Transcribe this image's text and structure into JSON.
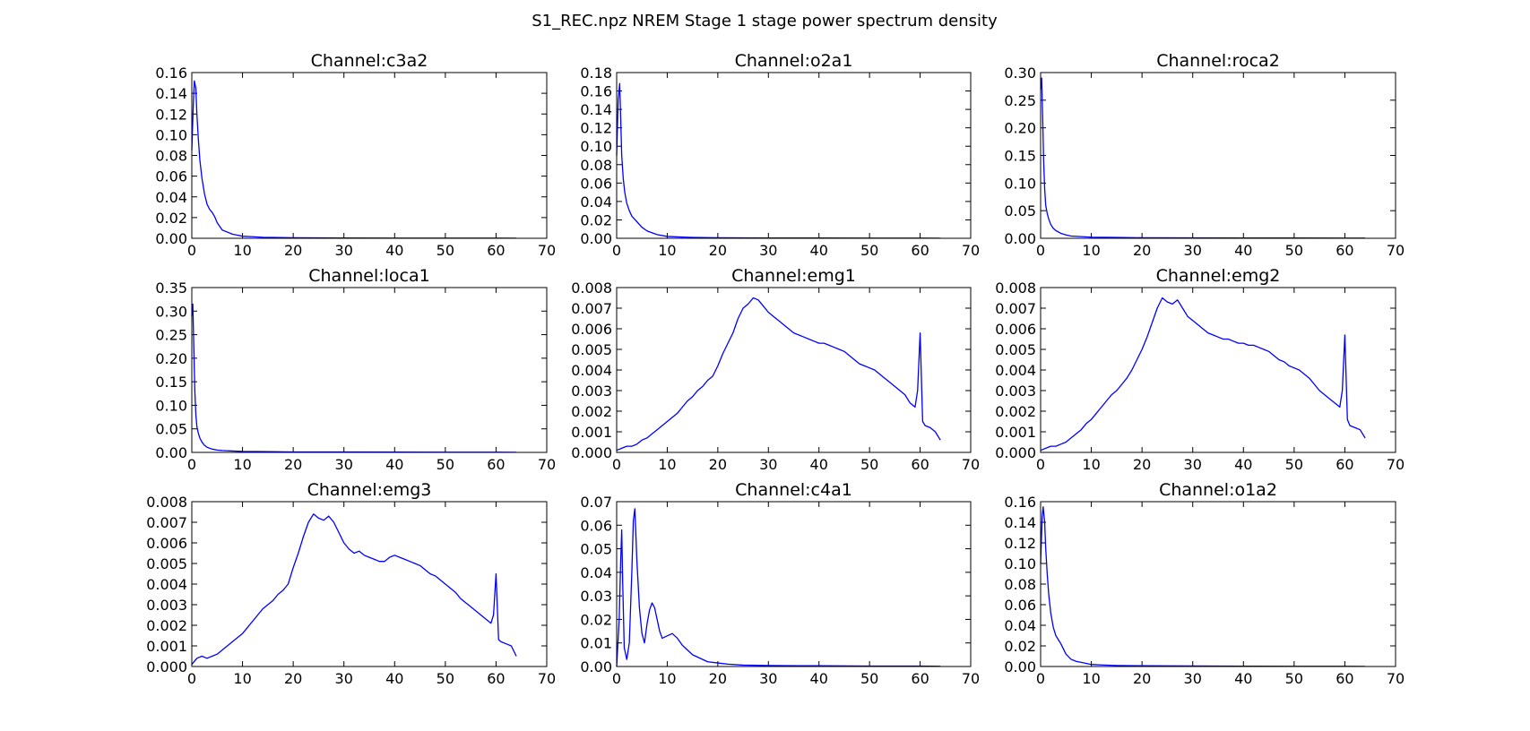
{
  "figure": {
    "title": "S1_REC.npz NREM Stage 1 stage power spectrum density",
    "line_color": "#0000ff"
  },
  "chart_data": [
    {
      "type": "line",
      "title": "Channel:c3a2",
      "xlim": [
        0,
        70
      ],
      "ylim": [
        0,
        0.16
      ],
      "xticks": [
        "0",
        "10",
        "20",
        "30",
        "40",
        "50",
        "60",
        "70"
      ],
      "yticks": [
        "0.00",
        "0.02",
        "0.04",
        "0.06",
        "0.08",
        "0.10",
        "0.12",
        "0.14",
        "0.16"
      ],
      "series": [
        {
          "x": [
            0,
            0.3,
            0.5,
            0.8,
            1,
            1.3,
            1.6,
            2,
            2.5,
            3,
            3.5,
            4,
            4.5,
            5,
            6,
            7,
            8,
            9,
            10,
            12,
            14,
            16,
            20,
            25,
            30,
            40,
            50,
            60,
            64
          ],
          "y": [
            0.085,
            0.13,
            0.152,
            0.145,
            0.12,
            0.095,
            0.075,
            0.058,
            0.043,
            0.033,
            0.028,
            0.025,
            0.021,
            0.015,
            0.008,
            0.006,
            0.004,
            0.003,
            0.002,
            0.0015,
            0.001,
            0.0008,
            0.0005,
            0.0004,
            0.0003,
            0.0002,
            0.0002,
            0.0002,
            0.0001
          ]
        }
      ]
    },
    {
      "type": "line",
      "title": "Channel:o2a1",
      "xlim": [
        0,
        70
      ],
      "ylim": [
        0,
        0.18
      ],
      "xticks": [
        "0",
        "10",
        "20",
        "30",
        "40",
        "50",
        "60",
        "70"
      ],
      "yticks": [
        "0.00",
        "0.02",
        "0.04",
        "0.06",
        "0.08",
        "0.10",
        "0.12",
        "0.14",
        "0.16",
        "0.18"
      ],
      "series": [
        {
          "x": [
            0,
            0.3,
            0.6,
            0.8,
            1,
            1.3,
            1.6,
            2,
            2.5,
            3,
            3.5,
            4,
            5,
            6,
            7,
            8,
            10,
            12,
            15,
            20,
            25,
            30,
            40,
            50,
            60,
            64
          ],
          "y": [
            0.09,
            0.15,
            0.168,
            0.13,
            0.09,
            0.065,
            0.05,
            0.038,
            0.03,
            0.024,
            0.021,
            0.018,
            0.012,
            0.008,
            0.006,
            0.004,
            0.002,
            0.0015,
            0.001,
            0.0006,
            0.0005,
            0.0004,
            0.0003,
            0.0002,
            0.0002,
            0.0001
          ]
        }
      ]
    },
    {
      "type": "line",
      "title": "Channel:roca2",
      "xlim": [
        0,
        70
      ],
      "ylim": [
        0,
        0.3
      ],
      "xticks": [
        "0",
        "10",
        "20",
        "30",
        "40",
        "50",
        "60",
        "70"
      ],
      "yticks": [
        "0.00",
        "0.05",
        "0.10",
        "0.15",
        "0.20",
        "0.25",
        "0.30"
      ],
      "series": [
        {
          "x": [
            0,
            0.2,
            0.4,
            0.6,
            0.8,
            1,
            1.3,
            1.6,
            2,
            2.5,
            3,
            4,
            5,
            6,
            8,
            10,
            15,
            20,
            30,
            40,
            50,
            60,
            64
          ],
          "y": [
            0.27,
            0.29,
            0.22,
            0.14,
            0.09,
            0.06,
            0.045,
            0.035,
            0.025,
            0.018,
            0.014,
            0.009,
            0.006,
            0.004,
            0.003,
            0.002,
            0.0015,
            0.001,
            0.0008,
            0.0006,
            0.0005,
            0.0004,
            0.0003
          ]
        }
      ]
    },
    {
      "type": "line",
      "title": "Channel:loca1",
      "xlim": [
        0,
        70
      ],
      "ylim": [
        0,
        0.35
      ],
      "xticks": [
        "0",
        "10",
        "20",
        "30",
        "40",
        "50",
        "60",
        "70"
      ],
      "yticks": [
        "0.00",
        "0.05",
        "0.10",
        "0.15",
        "0.20",
        "0.25",
        "0.30",
        "0.35"
      ],
      "series": [
        {
          "x": [
            0,
            0.2,
            0.4,
            0.6,
            0.8,
            1,
            1.3,
            1.6,
            2,
            2.5,
            3,
            4,
            5,
            6,
            8,
            10,
            15,
            20,
            30,
            40,
            50,
            60,
            64
          ],
          "y": [
            0.29,
            0.315,
            0.22,
            0.13,
            0.08,
            0.055,
            0.04,
            0.03,
            0.022,
            0.015,
            0.011,
            0.007,
            0.005,
            0.004,
            0.003,
            0.002,
            0.0015,
            0.001,
            0.0008,
            0.0006,
            0.0005,
            0.0004,
            0.0003
          ]
        }
      ]
    },
    {
      "type": "line",
      "title": "Channel:emg1",
      "xlim": [
        0,
        70
      ],
      "ylim": [
        0,
        0.008
      ],
      "xticks": [
        "0",
        "10",
        "20",
        "30",
        "40",
        "50",
        "60",
        "70"
      ],
      "yticks": [
        "0.000",
        "0.001",
        "0.002",
        "0.003",
        "0.004",
        "0.005",
        "0.006",
        "0.007",
        "0.008"
      ],
      "series": [
        {
          "x": [
            0,
            1,
            2,
            3,
            4,
            5,
            6,
            7,
            8,
            9,
            10,
            11,
            12,
            13,
            14,
            15,
            16,
            17,
            18,
            19,
            20,
            21,
            22,
            23,
            24,
            25,
            26,
            27,
            28,
            29,
            30,
            31,
            32,
            33,
            34,
            35,
            36,
            37,
            38,
            39,
            40,
            41,
            42,
            43,
            44,
            45,
            46,
            47,
            48,
            49,
            50,
            51,
            52,
            53,
            54,
            55,
            56,
            57,
            58,
            59,
            59.5,
            60,
            60.5,
            61,
            62,
            63,
            64
          ],
          "y": [
            0.0001,
            0.0002,
            0.0003,
            0.0003,
            0.0004,
            0.0006,
            0.0007,
            0.0009,
            0.0011,
            0.0013,
            0.0015,
            0.0017,
            0.0019,
            0.0022,
            0.0025,
            0.0027,
            0.003,
            0.0032,
            0.0035,
            0.0037,
            0.0042,
            0.0048,
            0.0053,
            0.0058,
            0.0065,
            0.007,
            0.0072,
            0.0075,
            0.0074,
            0.0071,
            0.0068,
            0.0066,
            0.0064,
            0.0062,
            0.006,
            0.0058,
            0.0057,
            0.0056,
            0.0055,
            0.0054,
            0.0053,
            0.0053,
            0.0052,
            0.0051,
            0.005,
            0.0049,
            0.0047,
            0.0045,
            0.0043,
            0.0042,
            0.0041,
            0.004,
            0.0038,
            0.0036,
            0.0034,
            0.0032,
            0.003,
            0.0028,
            0.0024,
            0.0022,
            0.003,
            0.0058,
            0.0015,
            0.0013,
            0.0012,
            0.001,
            0.0006
          ]
        }
      ]
    },
    {
      "type": "line",
      "title": "Channel:emg2",
      "xlim": [
        0,
        70
      ],
      "ylim": [
        0,
        0.008
      ],
      "xticks": [
        "0",
        "10",
        "20",
        "30",
        "40",
        "50",
        "60",
        "70"
      ],
      "yticks": [
        "0.000",
        "0.001",
        "0.002",
        "0.003",
        "0.004",
        "0.005",
        "0.006",
        "0.007",
        "0.008"
      ],
      "series": [
        {
          "x": [
            0,
            1,
            2,
            3,
            4,
            5,
            6,
            7,
            8,
            9,
            10,
            11,
            12,
            13,
            14,
            15,
            16,
            17,
            18,
            19,
            20,
            21,
            22,
            23,
            24,
            25,
            26,
            27,
            28,
            29,
            30,
            31,
            32,
            33,
            34,
            35,
            36,
            37,
            38,
            39,
            40,
            41,
            42,
            43,
            44,
            45,
            46,
            47,
            48,
            49,
            50,
            51,
            52,
            53,
            54,
            55,
            56,
            57,
            58,
            59,
            59.5,
            60,
            60.5,
            61,
            62,
            63,
            64
          ],
          "y": [
            0.0001,
            0.0002,
            0.0003,
            0.0003,
            0.0004,
            0.0005,
            0.0007,
            0.0009,
            0.0011,
            0.0014,
            0.0016,
            0.0019,
            0.0022,
            0.0025,
            0.0028,
            0.003,
            0.0033,
            0.0036,
            0.004,
            0.0045,
            0.005,
            0.0056,
            0.0063,
            0.007,
            0.0075,
            0.0073,
            0.0072,
            0.0074,
            0.007,
            0.0066,
            0.0064,
            0.0062,
            0.006,
            0.0058,
            0.0057,
            0.0056,
            0.0055,
            0.0055,
            0.0054,
            0.0053,
            0.0053,
            0.0052,
            0.0052,
            0.0051,
            0.005,
            0.0049,
            0.0047,
            0.0045,
            0.0044,
            0.0042,
            0.0041,
            0.004,
            0.0038,
            0.0036,
            0.0033,
            0.003,
            0.0028,
            0.0026,
            0.0024,
            0.0022,
            0.003,
            0.0057,
            0.0016,
            0.0013,
            0.0012,
            0.0011,
            0.0007
          ]
        }
      ]
    },
    {
      "type": "line",
      "title": "Channel:emg3",
      "xlim": [
        0,
        70
      ],
      "ylim": [
        0,
        0.008
      ],
      "xticks": [
        "0",
        "10",
        "20",
        "30",
        "40",
        "50",
        "60",
        "70"
      ],
      "yticks": [
        "0.000",
        "0.001",
        "0.002",
        "0.003",
        "0.004",
        "0.005",
        "0.006",
        "0.007",
        "0.008"
      ],
      "series": [
        {
          "x": [
            0,
            1,
            2,
            3,
            4,
            5,
            6,
            7,
            8,
            9,
            10,
            11,
            12,
            13,
            14,
            15,
            16,
            17,
            18,
            19,
            20,
            21,
            22,
            23,
            24,
            25,
            26,
            27,
            28,
            29,
            30,
            31,
            32,
            33,
            34,
            35,
            36,
            37,
            38,
            39,
            40,
            41,
            42,
            43,
            44,
            45,
            46,
            47,
            48,
            49,
            50,
            51,
            52,
            53,
            54,
            55,
            56,
            57,
            58,
            59,
            59.5,
            60,
            60.5,
            61,
            62,
            63,
            64
          ],
          "y": [
            0.0001,
            0.0004,
            0.0005,
            0.0004,
            0.0005,
            0.0006,
            0.0008,
            0.001,
            0.0012,
            0.0014,
            0.0016,
            0.0019,
            0.0022,
            0.0025,
            0.0028,
            0.003,
            0.0032,
            0.0035,
            0.0037,
            0.004,
            0.0048,
            0.0055,
            0.0063,
            0.007,
            0.0074,
            0.0072,
            0.0071,
            0.0073,
            0.007,
            0.0065,
            0.006,
            0.0057,
            0.0055,
            0.0056,
            0.0054,
            0.0053,
            0.0052,
            0.0051,
            0.0051,
            0.0053,
            0.0054,
            0.0053,
            0.0052,
            0.0051,
            0.005,
            0.0049,
            0.0047,
            0.0045,
            0.0044,
            0.0042,
            0.004,
            0.0038,
            0.0036,
            0.0033,
            0.0031,
            0.0029,
            0.0027,
            0.0025,
            0.0023,
            0.0021,
            0.0025,
            0.0045,
            0.0013,
            0.0012,
            0.0011,
            0.001,
            0.0005
          ]
        }
      ]
    },
    {
      "type": "line",
      "title": "Channel:c4a1",
      "xlim": [
        0,
        70
      ],
      "ylim": [
        0,
        0.07
      ],
      "xticks": [
        "0",
        "10",
        "20",
        "30",
        "40",
        "50",
        "60",
        "70"
      ],
      "yticks": [
        "0.00",
        "0.01",
        "0.02",
        "0.03",
        "0.04",
        "0.05",
        "0.06",
        "0.07"
      ],
      "series": [
        {
          "x": [
            0,
            0.5,
            0.8,
            1,
            1.2,
            1.5,
            2,
            2.5,
            3,
            3.3,
            3.6,
            4,
            4.5,
            5,
            5.5,
            6,
            6.5,
            7,
            7.5,
            8,
            8.5,
            9,
            10,
            11,
            12,
            13,
            14,
            15,
            16,
            17,
            18,
            20,
            22,
            25,
            30,
            40,
            50,
            60,
            64
          ],
          "y": [
            0.0,
            0.02,
            0.045,
            0.058,
            0.035,
            0.008,
            0.003,
            0.01,
            0.04,
            0.062,
            0.067,
            0.045,
            0.025,
            0.014,
            0.01,
            0.018,
            0.024,
            0.027,
            0.025,
            0.02,
            0.015,
            0.012,
            0.013,
            0.014,
            0.012,
            0.009,
            0.007,
            0.005,
            0.004,
            0.003,
            0.002,
            0.0015,
            0.001,
            0.0006,
            0.0004,
            0.0003,
            0.0002,
            0.0002,
            0.0001
          ]
        }
      ]
    },
    {
      "type": "line",
      "title": "Channel:o1a2",
      "xlim": [
        0,
        70
      ],
      "ylim": [
        0,
        0.16
      ],
      "xticks": [
        "0",
        "10",
        "20",
        "30",
        "40",
        "50",
        "60",
        "70"
      ],
      "yticks": [
        "0.00",
        "0.02",
        "0.04",
        "0.06",
        "0.08",
        "0.10",
        "0.12",
        "0.14",
        "0.16"
      ],
      "series": [
        {
          "x": [
            0,
            0.3,
            0.5,
            0.8,
            1,
            1.3,
            1.6,
            2,
            2.5,
            3,
            3.5,
            4,
            5,
            6,
            7,
            8,
            10,
            12,
            15,
            20,
            30,
            40,
            50,
            60,
            64
          ],
          "y": [
            0.1,
            0.145,
            0.155,
            0.14,
            0.115,
            0.09,
            0.07,
            0.052,
            0.038,
            0.03,
            0.026,
            0.022,
            0.012,
            0.007,
            0.005,
            0.004,
            0.002,
            0.0015,
            0.001,
            0.0007,
            0.0005,
            0.0003,
            0.0002,
            0.0002,
            0.0001
          ]
        }
      ]
    }
  ]
}
